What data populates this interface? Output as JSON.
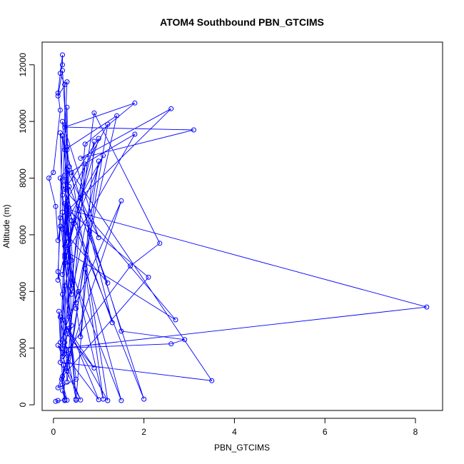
{
  "chart_data": {
    "type": "scatter",
    "title": "ATOM4 Southbound PBN_GTCIMS",
    "xlabel": "PBN_GTCIMS",
    "ylabel": "Altitude (m)",
    "xlim": [
      -0.25,
      8.6
    ],
    "ylim": [
      -200,
      12800
    ],
    "xticks": [
      "0",
      "2",
      "4",
      "6",
      "8"
    ],
    "yticks": [
      "0",
      "2000",
      "4000",
      "6000",
      "8000",
      "10000",
      "12000"
    ],
    "grid": false,
    "legend": "none",
    "style": "points connected by lines (open circles)",
    "color": "#0000ff",
    "series": [
      {
        "x": [
          0.1,
          0.05,
          0.25,
          0.2,
          0.3,
          0.18,
          0.25,
          0.22,
          0.6,
          0.1,
          1.0,
          0.35,
          0.5,
          0.12,
          0.15,
          0.55,
          1.1,
          0.7,
          1.5,
          0.25,
          0.5,
          0.8,
          2.0,
          0.3,
          0.2,
          1.2,
          0.4,
          3.5,
          0.15,
          0.3,
          0.2,
          0.9,
          2.35,
          1.7,
          0.25,
          0.4,
          0.2,
          0.1,
          0.6,
          1.3,
          0.15,
          0.5,
          1.5,
          0.2,
          2.1,
          0.3,
          8.25,
          0.2,
          2.6,
          2.9,
          1.5,
          0.15,
          0.3,
          1.0,
          0.4,
          0.25,
          1.1,
          0.2,
          1.2,
          0.35,
          0.25,
          0.9,
          0.6,
          0.2,
          0.35,
          0.3,
          0.25,
          0.4,
          0.7,
          1.8,
          0.25,
          3.1,
          0.6,
          2.6,
          0.15,
          0.4,
          0.3,
          1.0,
          0.2,
          0.5,
          0.25,
          1.2,
          0.3,
          0.7,
          0.2,
          0.45,
          1.0,
          0.25,
          2.7,
          0.3,
          1.8,
          0.25,
          0.35,
          0.2,
          1.4,
          0.25,
          0.25,
          0.15,
          0.2,
          0.2,
          0.1,
          0.15,
          0.0,
          -0.1,
          0.05,
          0.1,
          0.15,
          0.1,
          0.2,
          0.3,
          0.9,
          0.15,
          0.2,
          0.25,
          0.35,
          0.1,
          0.5,
          0.25,
          0.4,
          0.2,
          0.3,
          0.1,
          0.2,
          0.3,
          0.35,
          0.3,
          0.25
        ],
        "y": [
          150,
          120,
          180,
          500,
          160,
          900,
          150,
          1400,
          170,
          2100,
          180,
          2700,
          200,
          3300,
          2200,
          4000,
          200,
          4800,
          150,
          5300,
          160,
          6100,
          200,
          7000,
          3000,
          150,
          8200,
          850,
          1500,
          9000,
          2000,
          10300,
          5700,
          4900,
          1800,
          6500,
          9500,
          4400,
          7300,
          2900,
          8000,
          3600,
          7200,
          1000,
          4500,
          6900,
          3450,
          2000,
          2150,
          2300,
          2600,
          9600,
          800,
          8600,
          3900,
          5600,
          8800,
          6200,
          4300,
          7700,
          5000,
          9300,
          2400,
          6800,
          3100,
          10500,
          7900,
          4100,
          9200,
          10650,
          9800,
          9700,
          8700,
          10450,
          6600,
          2800,
          8300,
          5900,
          10000,
          3400,
          7100,
          9900,
          1200,
          8500,
          4600,
          6400,
          9400,
          7600,
          3000,
          5400,
          9550,
          8100,
          6000,
          1700,
          10200,
          9000,
          11300,
          11700,
          12000,
          12350,
          11000,
          10400,
          8200,
          8000,
          7000,
          5800,
          6300,
          4700,
          3900,
          2500,
          1300,
          3100,
          700,
          2200,
          1800,
          600,
          900,
          4200,
          5100,
          7400,
          11400,
          10900,
          11800,
          9100,
          8400,
          6700,
          5200
        ]
      }
    ]
  }
}
